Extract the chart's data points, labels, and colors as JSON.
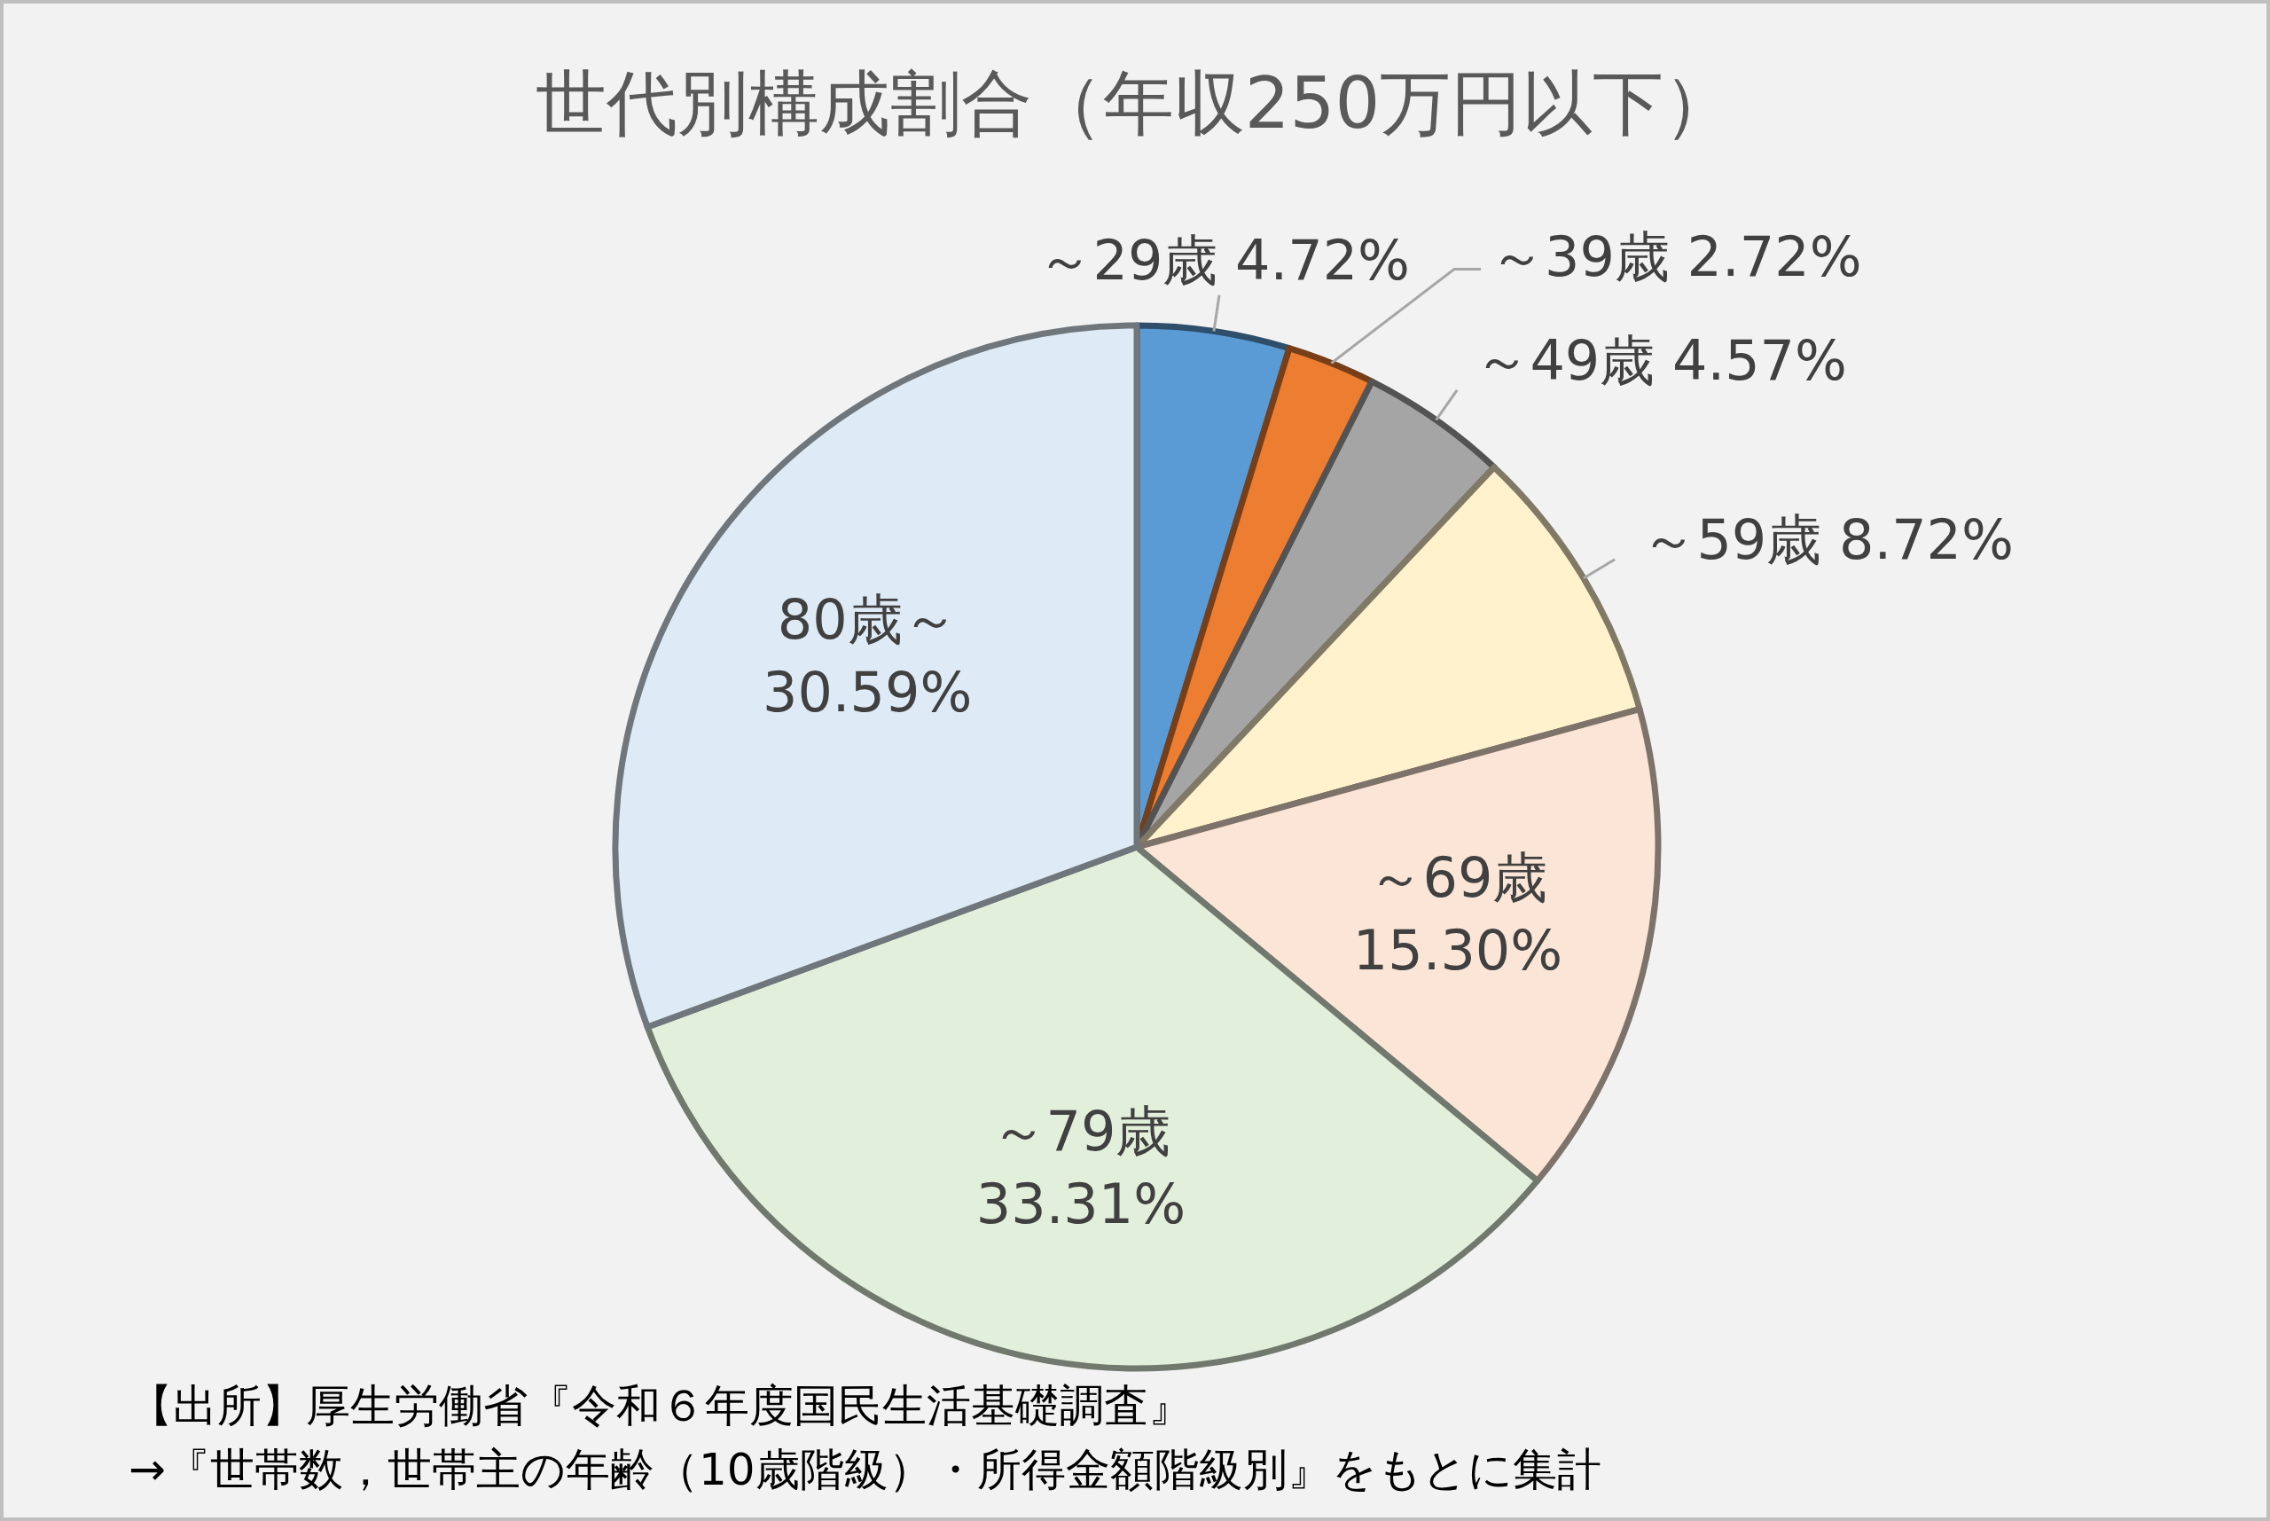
{
  "chart_data": {
    "type": "pie",
    "title": "世代別構成割合（年収250万円以下）",
    "categories": [
      "～29歳",
      "～39歳",
      "～49歳",
      "～59歳",
      "～69歳",
      "～79歳",
      "80歳～"
    ],
    "values": [
      4.72,
      2.72,
      4.57,
      8.72,
      15.3,
      33.31,
      30.59
    ],
    "value_labels": [
      "4.72%",
      "2.72%",
      "4.57%",
      "8.72%",
      "15.30%",
      "33.31%",
      "30.59%"
    ],
    "colors": [
      "#5b9bd5",
      "#ed7d31",
      "#a5a5a5",
      "#fff2cc",
      "#fbe5d6",
      "#e2efda",
      "#deebf7"
    ],
    "annotations": [
      "【出所】厚生労働省『令和６年度国民生活基礎調査』",
      "→『世帯数，世帯主の年齢（10歳階級）・所得金額階級別』をもとに集計"
    ]
  }
}
